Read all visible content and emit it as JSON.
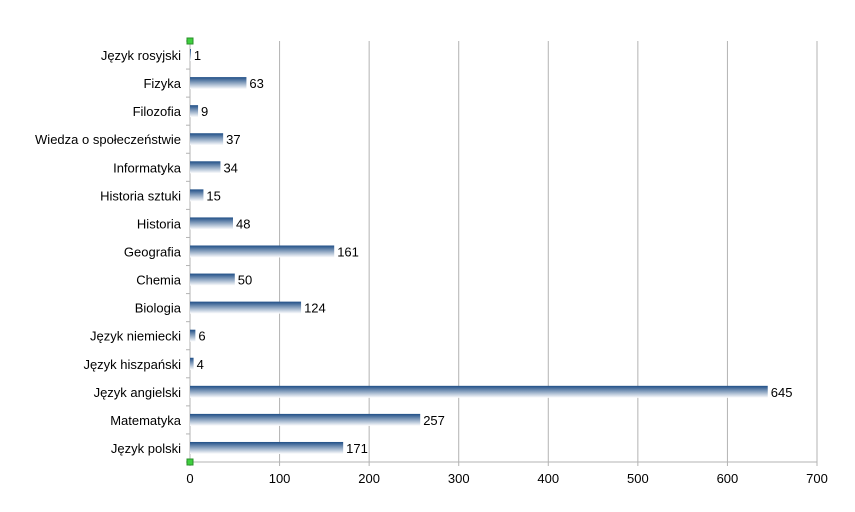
{
  "chart_data": {
    "type": "bar",
    "orientation": "horizontal",
    "categories": [
      "Język rosyjski",
      "Fizyka",
      "Filozofia",
      "Wiedza o społeczeństwie",
      "Informatyka",
      "Historia sztuki",
      "Historia",
      "Geografia",
      "Chemia",
      "Biologia",
      "Język niemiecki",
      "Język hiszpański",
      "Język angielski",
      "Matematyka",
      "Język polski"
    ],
    "values": [
      1,
      63,
      9,
      37,
      34,
      15,
      48,
      161,
      50,
      124,
      6,
      4,
      645,
      257,
      171
    ],
    "xlim": [
      0,
      700
    ],
    "xticks": [
      0,
      100,
      200,
      300,
      400,
      500,
      600,
      700
    ],
    "title": "",
    "xlabel": "",
    "ylabel": "",
    "grid": "vertical",
    "legend": "none",
    "colors": {
      "bar_dark": "#1f4e86",
      "bar_light": "#ffffff",
      "grid": "#b3b3b3",
      "axis": "#b3b3b3",
      "handle": "#3fcf3f"
    }
  }
}
